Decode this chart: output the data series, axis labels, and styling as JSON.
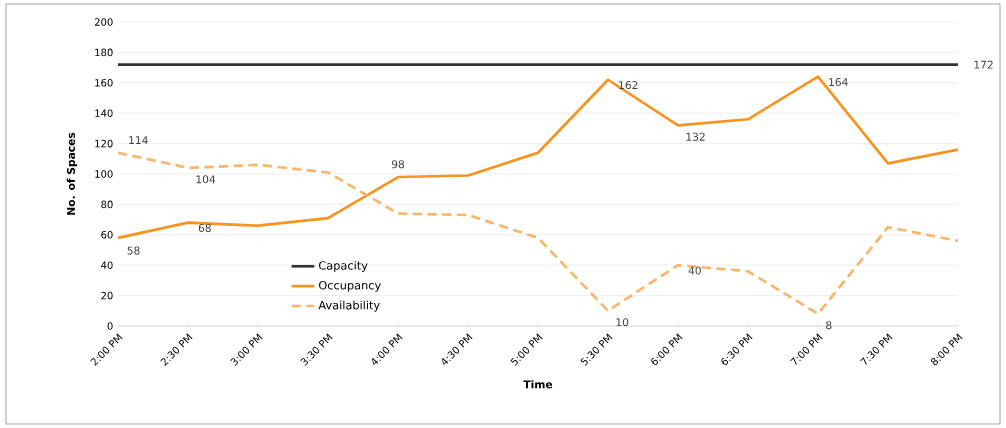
{
  "chart_data": {
    "type": "line",
    "xlabel": "Time",
    "ylabel": "No. of Spaces",
    "categories": [
      "2:00 PM",
      "2:30 PM",
      "3:00 PM",
      "3:30 PM",
      "4:00 PM",
      "4:30 PM",
      "5:00 PM",
      "5:30 PM",
      "6:00 PM",
      "6:30 PM",
      "7:00 PM",
      "7:30 PM",
      "8:00 PM"
    ],
    "series": [
      {
        "name": "Capacity",
        "color": "#333333",
        "line_style": "solid",
        "values": [
          172,
          172,
          172,
          172,
          172,
          172,
          172,
          172,
          172,
          172,
          172,
          172,
          172
        ],
        "value_labels": [
          null,
          null,
          null,
          null,
          null,
          null,
          null,
          null,
          null,
          null,
          null,
          null,
          "172"
        ]
      },
      {
        "name": "Occupancy",
        "color": "#f7941d",
        "line_style": "solid",
        "values": [
          58,
          68,
          66,
          71,
          98,
          99,
          114,
          162,
          132,
          136,
          164,
          107,
          116
        ],
        "value_labels": [
          "58",
          "68",
          null,
          null,
          "98",
          null,
          null,
          "162",
          "132",
          null,
          "164",
          null,
          null
        ]
      },
      {
        "name": "Availability",
        "color": "#fbb56b",
        "line_style": "dashed",
        "values": [
          114,
          104,
          106,
          101,
          74,
          73,
          58,
          10,
          40,
          36,
          8,
          65,
          56
        ],
        "value_labels": [
          "114",
          "104",
          null,
          null,
          null,
          null,
          null,
          "10",
          "40",
          null,
          "8",
          null,
          null
        ]
      }
    ],
    "ylim": [
      0,
      200
    ],
    "yticks": [
      0,
      20,
      40,
      60,
      80,
      100,
      120,
      140,
      160,
      180,
      200
    ],
    "grid": "y",
    "legend": "bottom left",
    "marker": "none"
  }
}
